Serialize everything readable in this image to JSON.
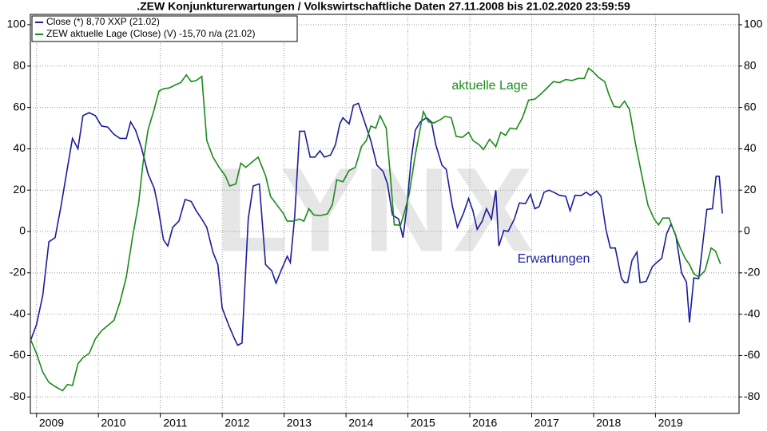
{
  "chart_data": {
    "type": "line",
    "title": ".ZEW Konjunkturerwartungen / Volkswirtschaftliche Daten 27.11.2008 bis 21.02.2020 23:59:59",
    "watermark": "LYNX",
    "annotations": [
      "aktuelle Lage",
      "Erwartungen"
    ],
    "xlim": [
      2008.9,
      2020.35
    ],
    "xticks": [
      2009,
      2010,
      2011,
      2012,
      2013,
      2014,
      2015,
      2016,
      2017,
      2018,
      2019
    ],
    "ylim": [
      -88,
      105
    ],
    "yticks": [
      -80,
      -60,
      -40,
      -20,
      0,
      20,
      40,
      60,
      80,
      100
    ],
    "y2lim": [
      -88,
      105
    ],
    "y2ticks": [
      -80,
      -60,
      -40,
      -20,
      0,
      20,
      40,
      60,
      80,
      100
    ],
    "grid": true,
    "legend": "top-left",
    "series": [
      {
        "name": "Close (*) 8,70 XXP (21.02)",
        "color": "#1c1c9c",
        "x": [
          2008.9,
          2009.0,
          2009.1,
          2009.2,
          2009.3,
          2009.4,
          2009.5,
          2009.58,
          2009.67,
          2009.75,
          2009.85,
          2009.95,
          2010.05,
          2010.15,
          2010.25,
          2010.35,
          2010.45,
          2010.52,
          2010.6,
          2010.7,
          2010.8,
          2010.9,
          2010.95,
          2011.05,
          2011.12,
          2011.2,
          2011.3,
          2011.4,
          2011.5,
          2011.58,
          2011.67,
          2011.75,
          2011.85,
          2011.93,
          2012.0,
          2012.1,
          2012.2,
          2012.25,
          2012.32,
          2012.42,
          2012.5,
          2012.6,
          2012.7,
          2012.8,
          2012.87,
          2012.95,
          2013.05,
          2013.1,
          2013.17,
          2013.25,
          2013.33,
          2013.42,
          2013.5,
          2013.58,
          2013.65,
          2013.75,
          2013.83,
          2013.9,
          2013.95,
          2014.05,
          2014.12,
          2014.2,
          2014.3,
          2014.4,
          2014.5,
          2014.6,
          2014.67,
          2014.75,
          2014.85,
          2014.92,
          2014.98,
          2015.05,
          2015.12,
          2015.2,
          2015.3,
          2015.38,
          2015.45,
          2015.55,
          2015.62,
          2015.72,
          2015.8,
          2015.9,
          2015.98,
          2016.05,
          2016.12,
          2016.2,
          2016.27,
          2016.35,
          2016.42,
          2016.47,
          2016.55,
          2016.62,
          2016.72,
          2016.8,
          2016.9,
          2016.98,
          2017.05,
          2017.12,
          2017.2,
          2017.28,
          2017.38,
          2017.45,
          2017.55,
          2017.62,
          2017.7,
          2017.8,
          2017.88,
          2017.95,
          2018.05,
          2018.12,
          2018.2,
          2018.27,
          2018.35,
          2018.45,
          2018.5,
          2018.55,
          2018.62,
          2018.7,
          2018.75,
          2018.85,
          2018.95,
          2019.02,
          2019.1,
          2019.18,
          2019.25,
          2019.33,
          2019.42,
          2019.5,
          2019.55,
          2019.62,
          2019.7,
          2019.78,
          2019.83,
          2019.92,
          2019.98,
          2020.03,
          2020.08
        ],
        "values": [
          -53,
          -45,
          -31,
          -5,
          -3,
          13,
          31,
          45,
          40,
          56,
          57.5,
          56,
          51,
          50.5,
          47,
          45,
          45,
          53,
          49,
          40,
          28,
          21,
          14,
          -4,
          -7,
          2,
          5,
          15.5,
          14.5,
          10,
          6,
          2,
          -10,
          -16,
          -37,
          -45,
          -52,
          -55,
          -54,
          6,
          22,
          23,
          -16,
          -19,
          -25,
          -19,
          -12,
          -15,
          7,
          48.5,
          48.5,
          36,
          36,
          39,
          36,
          37,
          42,
          52,
          55,
          52,
          61,
          62,
          53,
          44,
          32,
          29,
          23,
          8,
          6,
          -3,
          11,
          34,
          49,
          53,
          55,
          53,
          42,
          32,
          30,
          12,
          2,
          9,
          16,
          10,
          1,
          5,
          11,
          6,
          20,
          -7,
          0.5,
          0,
          6,
          13.8,
          13.5,
          18,
          11,
          12,
          19,
          20,
          18.6,
          17.5,
          17,
          10,
          17.5,
          17.4,
          19,
          17.4,
          19.5,
          17,
          1,
          -8,
          -8,
          -22.7,
          -24.7,
          -24.6,
          -14,
          -10,
          -24.7,
          -24.1,
          -17,
          -15,
          -13,
          -1.1,
          3.6,
          -2,
          -20,
          -24.5,
          -44,
          -22.5,
          -22.8,
          -2,
          10.7,
          11,
          26.7,
          26.7,
          8.7
        ]
      },
      {
        "name": "ZEW aktuelle Lage (Close) (V) -15,70 n/a (21.02)",
        "color": "#1a8a1a",
        "x": [
          2008.9,
          2009.0,
          2009.1,
          2009.2,
          2009.3,
          2009.42,
          2009.5,
          2009.58,
          2009.67,
          2009.75,
          2009.85,
          2009.95,
          2010.05,
          2010.15,
          2010.25,
          2010.35,
          2010.45,
          2010.55,
          2010.65,
          2010.72,
          2010.8,
          2010.9,
          2010.98,
          2011.05,
          2011.15,
          2011.25,
          2011.33,
          2011.42,
          2011.5,
          2011.58,
          2011.67,
          2011.75,
          2011.85,
          2011.95,
          2012.05,
          2012.12,
          2012.22,
          2012.3,
          2012.38,
          2012.5,
          2012.58,
          2012.7,
          2012.78,
          2012.88,
          2012.98,
          2013.05,
          2013.15,
          2013.25,
          2013.32,
          2013.4,
          2013.48,
          2013.58,
          2013.7,
          2013.78,
          2013.85,
          2013.95,
          2014.05,
          2014.15,
          2014.25,
          2014.33,
          2014.4,
          2014.48,
          2014.55,
          2014.65,
          2014.72,
          2014.78,
          2014.88,
          2014.95,
          2015.02,
          2015.12,
          2015.25,
          2015.33,
          2015.42,
          2015.52,
          2015.6,
          2015.7,
          2015.78,
          2015.88,
          2015.98,
          2016.05,
          2016.15,
          2016.22,
          2016.32,
          2016.42,
          2016.5,
          2016.58,
          2016.65,
          2016.75,
          2016.85,
          2016.95,
          2017.05,
          2017.15,
          2017.25,
          2017.35,
          2017.45,
          2017.55,
          2017.65,
          2017.75,
          2017.85,
          2017.92,
          2018.0,
          2018.08,
          2018.18,
          2018.25,
          2018.33,
          2018.42,
          2018.5,
          2018.58,
          2018.68,
          2018.78,
          2018.88,
          2018.98,
          2019.05,
          2019.12,
          2019.22,
          2019.3,
          2019.4,
          2019.48,
          2019.55,
          2019.62,
          2019.7,
          2019.8,
          2019.9,
          2019.97,
          2020.05
        ],
        "values": [
          -52,
          -59,
          -68,
          -73,
          -75,
          -77,
          -74,
          -74.5,
          -64,
          -61,
          -59,
          -52,
          -48,
          -45.5,
          -43,
          -34,
          -22,
          -3,
          14,
          33,
          49,
          59,
          68,
          69,
          69.5,
          71,
          72,
          75.7,
          72.5,
          73,
          75,
          44,
          36,
          31,
          27,
          22,
          23,
          33,
          31,
          34,
          36,
          27,
          17,
          13,
          9,
          5,
          5,
          6,
          5,
          11,
          8,
          7.7,
          8.5,
          13,
          25,
          24,
          29.5,
          31,
          41,
          44,
          51,
          50,
          56,
          50,
          25.5,
          3.2,
          3,
          10,
          18,
          37,
          58,
          53,
          52.5,
          54,
          55.7,
          55,
          46,
          45.5,
          48,
          44,
          42,
          39.6,
          44.6,
          41,
          48,
          46.5,
          50,
          49.5,
          55,
          63.5,
          64,
          66.5,
          69.5,
          72.5,
          72,
          73.5,
          73,
          74,
          74,
          79,
          77,
          74.5,
          72.5,
          66,
          60.5,
          60,
          63,
          59,
          42,
          27,
          12.6,
          5.9,
          3.2,
          6.5,
          6.5,
          0,
          -8,
          -13,
          -16,
          -20.5,
          -22,
          -19,
          -8,
          -9.5,
          -15.7
        ]
      }
    ]
  }
}
